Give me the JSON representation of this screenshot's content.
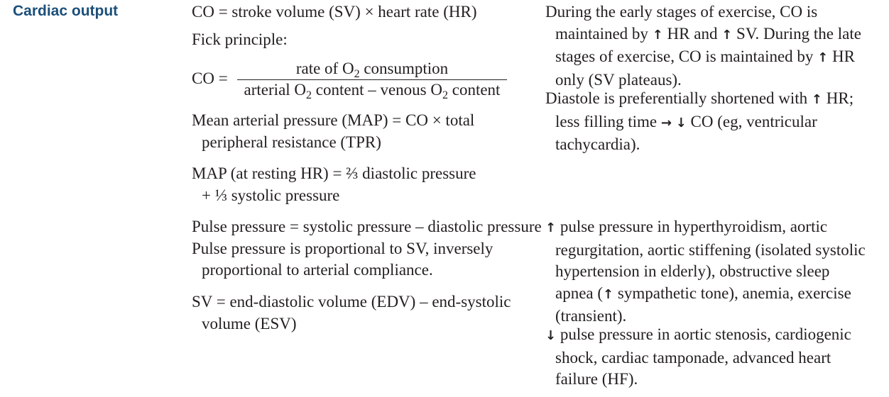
{
  "heading": "Cardiac output",
  "left": {
    "co_formula": "CO = stroke volume (SV) × heart rate (HR)",
    "fick_label": "Fick principle:",
    "fick": {
      "lhs": "CO =",
      "num_before": "rate of O",
      "num_sub": "2",
      "num_after": " consumption",
      "den_a": "arterial O",
      "den_sub1": "2",
      "den_b": " content – venous O",
      "den_sub2": "2",
      "den_c": " content"
    },
    "map_line1": "Mean arterial pressure (MAP) = CO × total",
    "map_line2": "peripheral resistance (TPR)",
    "map_rest_line1": "MAP (at resting HR) = ⅔ diastolic pressure",
    "map_rest_line2": "+ ⅓ systolic pressure",
    "pp_formula": "Pulse pressure = systolic pressure – diastolic pressure",
    "pp_prop_line1": "Pulse pressure is proportional to SV, inversely",
    "pp_prop_line2": "proportional to arterial compliance.",
    "sv_line1": "SV = end-diastolic volume (EDV) – end-systolic",
    "sv_line2": "volume (ESV)"
  },
  "right": {
    "ex_l1": "During the early stages of exercise, CO is",
    "ex_l2a": "maintained by ",
    "ex_l2b": " HR and ",
    "ex_l2c": " SV. During the late",
    "ex_l3a": "stages of exercise, CO is maintained by ",
    "ex_l3b": " HR",
    "ex_l4": "only (SV plateaus).",
    "dia_l1a": "Diastole is preferentially shortened with ",
    "dia_l1b": " HR;",
    "dia_l2a": "less filling time ",
    "dia_l2b": " ",
    "dia_l2c": " CO (eg, ventricular",
    "dia_l3": "tachycardia).",
    "inc_l1": " pulse pressure in hyperthyroidism, aortic",
    "inc_l2": "regurgitation, aortic stiffening (isolated systolic",
    "inc_l3": "hypertension in elderly), obstructive sleep",
    "inc_l4a": "apnea (",
    "inc_l4b": " sympathetic tone), anemia, exercise",
    "inc_l5": "(transient).",
    "dec_l1": " pulse pressure in aortic stenosis, cardiogenic",
    "dec_l2": "shock, cardiac tamponade, advanced heart",
    "dec_l3": "failure (HF)."
  },
  "icons": {
    "up": "↑",
    "down": "↓",
    "right": "→"
  }
}
